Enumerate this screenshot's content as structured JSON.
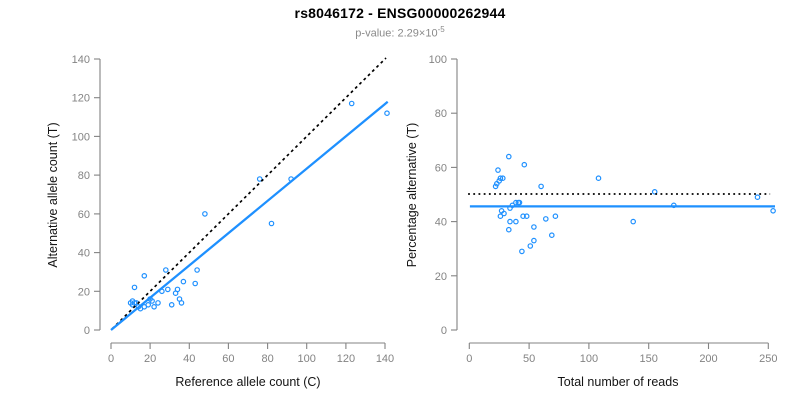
{
  "header": {
    "title": "rs8046172 - ENSG00000262944",
    "subtitle_prefix": "p-value: 2.29×10",
    "subtitle_exponent": "-5"
  },
  "chart_data": {
    "figure_title": "rs8046172 - ENSG00000262944",
    "figure_subtitle": "p-value: 2.29×10^-5",
    "p_value": "2.29e-5",
    "charts": [
      {
        "type": "scatter",
        "title": "",
        "xlabel": "Reference allele count (C)",
        "ylabel": "Alternative allele count (T)",
        "xlim": [
          0,
          140
        ],
        "ylim": [
          0,
          140
        ],
        "xticks": [
          0,
          20,
          40,
          60,
          80,
          100,
          120,
          140
        ],
        "yticks": [
          0,
          20,
          40,
          60,
          80,
          100,
          120,
          140
        ],
        "grid": false,
        "legend": null,
        "point_color": "#1E90FF",
        "points": [
          [
            10,
            14
          ],
          [
            11,
            13
          ],
          [
            11,
            15
          ],
          [
            12,
            14
          ],
          [
            13,
            14
          ],
          [
            12,
            22
          ],
          [
            14,
            12
          ],
          [
            15,
            11
          ],
          [
            17,
            12
          ],
          [
            17,
            28
          ],
          [
            19,
            13
          ],
          [
            20,
            16
          ],
          [
            21,
            15
          ],
          [
            22,
            12
          ],
          [
            24,
            14
          ],
          [
            26,
            20
          ],
          [
            29,
            21
          ],
          [
            28,
            31
          ],
          [
            31,
            13
          ],
          [
            33,
            19
          ],
          [
            34,
            21
          ],
          [
            35,
            16
          ],
          [
            36,
            14
          ],
          [
            37,
            25
          ],
          [
            43,
            24
          ],
          [
            44,
            31
          ],
          [
            48,
            60
          ],
          [
            76,
            78
          ],
          [
            82,
            55
          ],
          [
            92,
            78
          ],
          [
            123,
            117
          ],
          [
            141,
            112
          ]
        ],
        "lines": [
          {
            "name": "identity-line",
            "style": "dashed",
            "color": "#000000",
            "from": [
              0.5,
              0.5
            ],
            "to": [
              140.5,
              140.5
            ]
          },
          {
            "name": "regression-line",
            "style": "solid",
            "color": "#1E90FF",
            "from": [
              0,
              0
            ],
            "to": [
              141.4,
              117.9
            ]
          }
        ]
      },
      {
        "type": "scatter",
        "title": "",
        "xlabel": "Total number of reads",
        "ylabel": "Percentage alternative (T)",
        "xlim": [
          0,
          255
        ],
        "ylim": [
          0,
          100
        ],
        "xticks": [
          0,
          50,
          100,
          150,
          200,
          250
        ],
        "yticks": [
          0,
          20,
          40,
          60,
          80,
          100
        ],
        "grid": false,
        "legend": null,
        "point_color": "#1E90FF",
        "points": [
          [
            33,
            64
          ],
          [
            46,
            61
          ],
          [
            24,
            59
          ],
          [
            26,
            56
          ],
          [
            28,
            56
          ],
          [
            23,
            54
          ],
          [
            25,
            55
          ],
          [
            22,
            53
          ],
          [
            60,
            53
          ],
          [
            108,
            56
          ],
          [
            155,
            51
          ],
          [
            241,
            49
          ],
          [
            39,
            47
          ],
          [
            41,
            47
          ],
          [
            42,
            47
          ],
          [
            36,
            46
          ],
          [
            34,
            45
          ],
          [
            171,
            46
          ],
          [
            27,
            44
          ],
          [
            29,
            43
          ],
          [
            26,
            42
          ],
          [
            45,
            42
          ],
          [
            48,
            42
          ],
          [
            64,
            41
          ],
          [
            72,
            42
          ],
          [
            34,
            40
          ],
          [
            39,
            40
          ],
          [
            137,
            40
          ],
          [
            54,
            38
          ],
          [
            33,
            37
          ],
          [
            69,
            35
          ],
          [
            54,
            33
          ],
          [
            51,
            31
          ],
          [
            44,
            29
          ],
          [
            254,
            44
          ]
        ],
        "lines": [
          {
            "name": "expected-50pct-line",
            "style": "dotted",
            "color": "#000000",
            "from": [
              -1,
              50.2
            ],
            "to": [
              251.5,
              50.2
            ]
          },
          {
            "name": "mean-percentage-line",
            "style": "solid",
            "color": "#1E90FF",
            "from": [
              0.5,
              45.6
            ],
            "to": [
              255.6,
              45.6
            ]
          }
        ]
      }
    ]
  }
}
